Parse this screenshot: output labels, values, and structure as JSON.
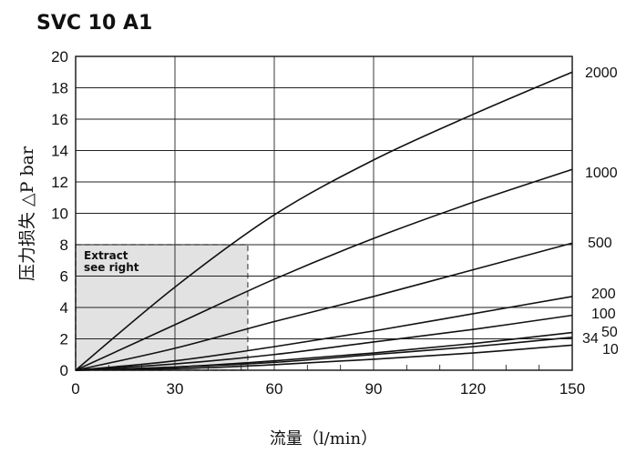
{
  "chart_data": {
    "type": "line",
    "title": "SVC 10 A1",
    "xlabel": "流量（l/min）",
    "ylabel": "压力损失 △P bar",
    "xlim": [
      0,
      150
    ],
    "ylim": [
      0,
      20
    ],
    "x_ticks": [
      "0",
      "30",
      "60",
      "90",
      "120",
      "150"
    ],
    "y_ticks": [
      "0",
      "2",
      "4",
      "6",
      "8",
      "10",
      "12",
      "14",
      "16",
      "18",
      "20"
    ],
    "grid": true,
    "series": [
      {
        "name": "2000",
        "x": [
          0,
          30,
          60,
          90,
          120,
          150
        ],
        "y": [
          0,
          5.3,
          9.9,
          13.4,
          16.3,
          19.0
        ]
      },
      {
        "name": "1000",
        "x": [
          0,
          30,
          60,
          90,
          120,
          150
        ],
        "y": [
          0,
          2.9,
          5.8,
          8.4,
          10.7,
          12.8
        ]
      },
      {
        "name": "500",
        "x": [
          0,
          30,
          60,
          90,
          120,
          150
        ],
        "y": [
          0,
          1.4,
          3.1,
          4.7,
          6.4,
          8.1
        ]
      },
      {
        "name": "200",
        "x": [
          0,
          30,
          60,
          90,
          120,
          150
        ],
        "y": [
          0,
          0.6,
          1.5,
          2.5,
          3.6,
          4.7
        ]
      },
      {
        "name": "100",
        "x": [
          0,
          30,
          60,
          90,
          120,
          150
        ],
        "y": [
          0,
          0.4,
          1.0,
          1.8,
          2.6,
          3.5
        ]
      },
      {
        "name": "50",
        "x": [
          0,
          30,
          60,
          90,
          120,
          150
        ],
        "y": [
          0,
          0.2,
          0.6,
          1.1,
          1.7,
          2.4
        ]
      },
      {
        "name": "34",
        "x": [
          0,
          30,
          60,
          90,
          120,
          150
        ],
        "y": [
          0,
          0.2,
          0.5,
          1.0,
          1.5,
          2.1
        ]
      },
      {
        "name": "10",
        "x": [
          0,
          30,
          60,
          90,
          120,
          150
        ],
        "y": [
          0,
          0.1,
          0.35,
          0.7,
          1.1,
          1.6
        ]
      }
    ],
    "extract": {
      "label_line1": "Extract",
      "label_line2": "see right",
      "x_max": 52,
      "y_max": 8
    }
  }
}
